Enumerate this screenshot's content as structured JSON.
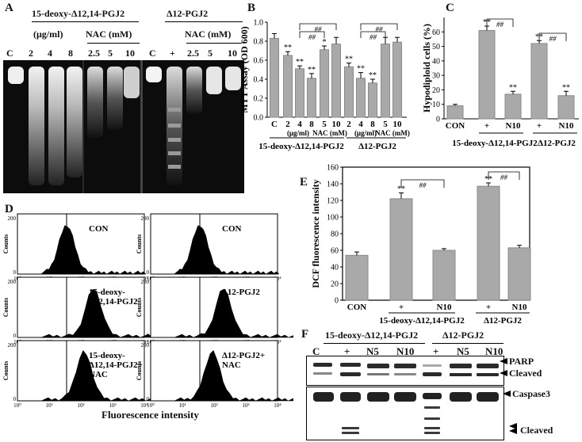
{
  "panels": {
    "A": "A",
    "B": "B",
    "C": "C",
    "D": "D",
    "E": "E",
    "F": "F"
  },
  "panel_a": {
    "header_left": "15-deoxy-Δ12,14-PGJ2",
    "header_right": "Δ12-PGJ2",
    "ug": "(μg/ml)",
    "nac_left": "NAC (mM)",
    "nac_right": "NAC (mM)",
    "lanes_left": [
      "C",
      "2",
      "4",
      "8",
      "2.5",
      "5",
      "10"
    ],
    "lanes_right": [
      "C",
      "+",
      "2.5",
      "5",
      "10"
    ]
  },
  "chart_data": [
    {
      "panel": "B",
      "type": "bar",
      "ylabel": "MTT Assay (OD 600)",
      "ylim": [
        0,
        1.0
      ],
      "yticks": [
        "0.0",
        "0.2",
        "0.4",
        "0.6",
        "0.8",
        "1.0"
      ],
      "categories": [
        "C",
        "2",
        "4",
        "8",
        "5",
        "10",
        "2",
        "4",
        "8",
        "5",
        "10"
      ],
      "values": [
        0.83,
        0.65,
        0.51,
        0.41,
        0.71,
        0.77,
        0.53,
        0.41,
        0.36,
        0.77,
        0.79
      ],
      "errors": [
        0.05,
        0.04,
        0.03,
        0.05,
        0.04,
        0.07,
        0.04,
        0.06,
        0.04,
        0.07,
        0.05
      ],
      "marks": [
        "",
        "**",
        "**",
        "**",
        "*",
        "",
        "**",
        "**",
        "**",
        "",
        ""
      ],
      "sig_label": "##",
      "sub_label_1": "(μg/ml)",
      "sub_label_2": "NAC (mM)",
      "sub_label_3": "(μg/ml)",
      "sub_label_4": "NAC (mM)",
      "group_1": "15-deoxy-Δ12,14-PGJ2",
      "group_2": "Δ12-PGJ2"
    },
    {
      "panel": "C",
      "type": "bar",
      "ylabel": "Hypodiploid cells (%)",
      "ylim": [
        0,
        70
      ],
      "yticks": [
        "0",
        "10",
        "20",
        "30",
        "40",
        "50",
        "60"
      ],
      "categories": [
        "CON",
        "+",
        "N10",
        "+",
        "N10"
      ],
      "values": [
        9,
        61,
        17,
        52,
        16
      ],
      "errors": [
        1,
        3,
        2,
        2,
        3
      ],
      "marks": [
        "",
        "**",
        "**",
        "**",
        "**"
      ],
      "sig_label": "##",
      "group_1": "15-deoxy-Δ12,14-PGJ2",
      "group_2": "Δ12-PGJ2"
    },
    {
      "panel": "E",
      "type": "bar",
      "ylabel": "DCF fluorescence intensity",
      "ylim": [
        0,
        160
      ],
      "yticks": [
        "0",
        "20",
        "40",
        "60",
        "80",
        "100",
        "120",
        "140",
        "160"
      ],
      "categories": [
        "CON",
        "+",
        "N10",
        "+",
        "N10"
      ],
      "values": [
        54,
        122,
        60,
        137,
        63
      ],
      "errors": [
        4,
        7,
        2,
        4,
        3
      ],
      "marks": [
        "",
        "**",
        "",
        "**",
        ""
      ],
      "sig_label": "##",
      "group_1": "15-deoxy-Δ12,14-PGJ2",
      "group_2": "Δ12-PGJ2"
    }
  ],
  "panel_d": {
    "xlabel": "Fluorescence intensity",
    "ylabel": "Counts",
    "ytick_top": "200",
    "ytick_bottom": "0",
    "xticks": [
      "10⁰",
      "10¹",
      "10²",
      "10³",
      "10⁴"
    ],
    "cells": [
      {
        "label1": "CON",
        "label2": ""
      },
      {
        "label1": "CON",
        "label2": ""
      },
      {
        "label1": "15-deoxy-",
        "label2": "Δ12,14-PGJ2"
      },
      {
        "label1": "Δ12-PGJ2",
        "label2": ""
      },
      {
        "label1": "15-deoxy-",
        "label2": "Δ12,14-PGJ2+",
        "label3": "NAC"
      },
      {
        "label1": "Δ12-PGJ2+",
        "label2": "NAC"
      }
    ]
  },
  "panel_f": {
    "header_left": "15-deoxy-Δ12,14-PGJ2",
    "header_right": "Δ12-PGJ2",
    "lanes": [
      "C",
      "+",
      "N5",
      "N10",
      "+",
      "N5",
      "N10"
    ],
    "parp": "PARP",
    "cleaved_1": "Cleaved",
    "caspase": "Caspase3",
    "cleaved_2": "Cleaved"
  }
}
